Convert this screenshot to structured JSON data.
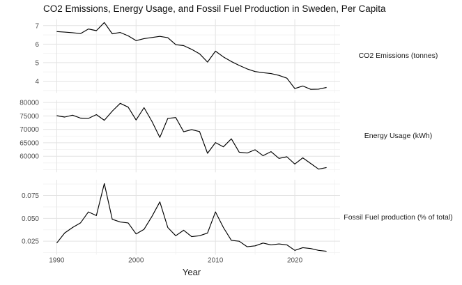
{
  "title": "CO2 Emissions, Energy Usage, and Fossil Fuel Production in Sweden, Per Capita",
  "colors": {
    "background": "#ffffff",
    "line": "#000000",
    "grid_major": "#e3e3e3",
    "grid_minor": "#f2f2f2",
    "axis_text": "#4d4d4d",
    "title_text": "#111111"
  },
  "chart_data": {
    "type": "line",
    "title": "CO2 Emissions, Energy Usage, and Fossil Fuel Production in Sweden, Per Capita",
    "xlabel": "Year",
    "ylabel": "",
    "grid": true,
    "legend_position": "right-facet-strips",
    "x": [
      1990,
      1991,
      1992,
      1993,
      1994,
      1995,
      1996,
      1997,
      1998,
      1999,
      2000,
      2001,
      2002,
      2003,
      2004,
      2005,
      2006,
      2007,
      2008,
      2009,
      2010,
      2011,
      2012,
      2013,
      2014,
      2015,
      2016,
      2017,
      2018,
      2019,
      2020,
      2021,
      2022,
      2023,
      2024
    ],
    "xlim": [
      1988.3,
      2025.7
    ],
    "x_ticks": [
      1990,
      2000,
      2010,
      2020
    ],
    "x_tick_labels": [
      "1990",
      "2000",
      "2010",
      "2020"
    ],
    "x_minor": [
      1995,
      2005,
      2015,
      2025
    ],
    "panels": [
      {
        "label": "CO2 Emissions (tonnes)",
        "ylim": [
          3.37,
          7.35
        ],
        "y_ticks": [
          4,
          5,
          6,
          7
        ],
        "y_tick_labels": [
          "4",
          "5",
          "6",
          "7"
        ],
        "y_minor": [
          3.5,
          4.5,
          5.5,
          6.5
        ],
        "values": [
          6.68,
          6.65,
          6.62,
          6.57,
          6.82,
          6.73,
          7.17,
          6.56,
          6.63,
          6.45,
          6.19,
          6.3,
          6.36,
          6.42,
          6.35,
          5.97,
          5.92,
          5.72,
          5.48,
          5.03,
          5.62,
          5.31,
          5.06,
          4.85,
          4.66,
          4.52,
          4.46,
          4.41,
          4.31,
          4.16,
          3.6,
          3.74,
          3.56,
          3.57,
          3.66
        ]
      },
      {
        "label": "Energy Usage (kWh)",
        "ylim": [
          54000,
          80900
        ],
        "y_ticks": [
          60000,
          65000,
          70000,
          75000,
          80000
        ],
        "y_tick_labels": [
          "60000",
          "65000",
          "70000",
          "75000",
          "80000"
        ],
        "y_minor": [
          55000,
          57500,
          62500,
          67500,
          72500,
          77500
        ],
        "values": [
          75100,
          74600,
          75300,
          74200,
          74100,
          75500,
          73400,
          76800,
          79700,
          78300,
          73500,
          78100,
          73000,
          67000,
          74100,
          74400,
          69100,
          69900,
          69200,
          61100,
          65100,
          63500,
          66500,
          61500,
          61200,
          62400,
          60200,
          61700,
          59200,
          59800,
          57100,
          59400,
          57300,
          55200,
          55800
        ]
      },
      {
        "label": "Fossil Fuel production (% of total)",
        "ylim": [
          0.0103,
          0.0922
        ],
        "y_ticks": [
          0.025,
          0.05,
          0.075
        ],
        "y_tick_labels": [
          "0.025",
          "0.050",
          "0.075"
        ],
        "y_minor": [
          0.0125,
          0.0375,
          0.0625,
          0.0875
        ],
        "values": [
          0.023,
          0.034,
          0.04,
          0.045,
          0.057,
          0.053,
          0.088,
          0.049,
          0.046,
          0.045,
          0.033,
          0.038,
          0.052,
          0.068,
          0.04,
          0.031,
          0.037,
          0.03,
          0.031,
          0.034,
          0.057,
          0.04,
          0.026,
          0.025,
          0.019,
          0.02,
          0.023,
          0.021,
          0.022,
          0.021,
          0.015,
          0.018,
          0.017,
          0.015,
          0.014
        ]
      }
    ]
  }
}
